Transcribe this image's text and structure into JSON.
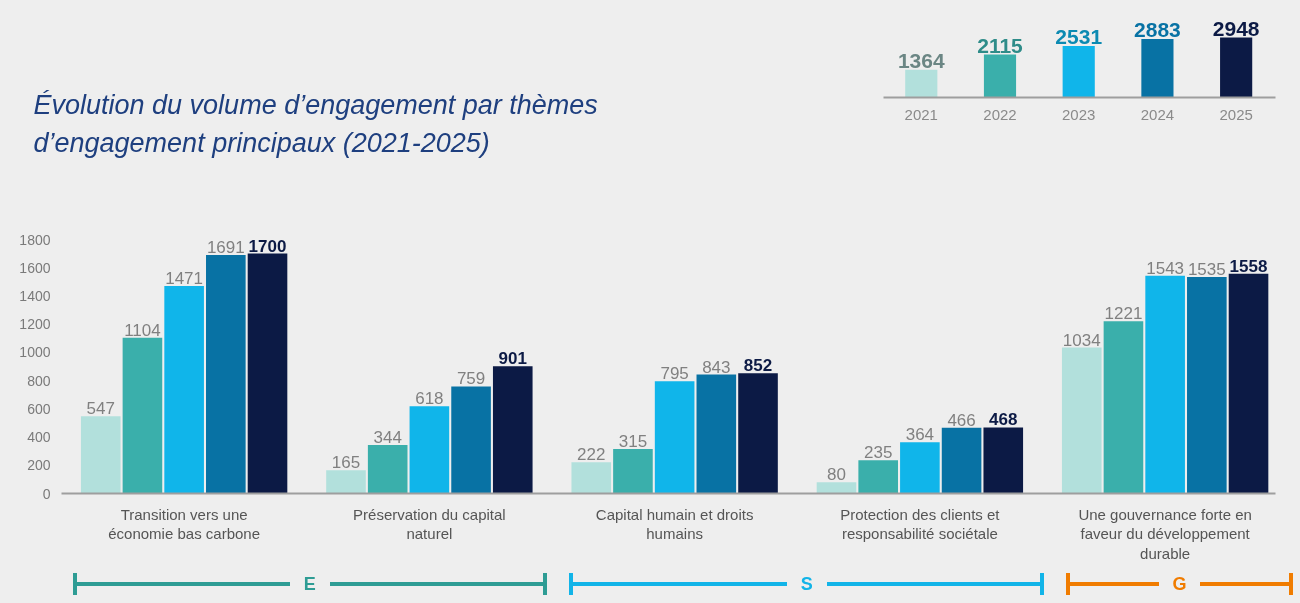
{
  "chart_data": [
    {
      "type": "bar",
      "title": "Évolution du volume d’engagement par thèmes d’engagement principaux (2021-2025)",
      "categories": [
        "Transition vers une économie bas carbone",
        "Préservation du capital naturel",
        "Capital humain et droits humains",
        "Protection des clients et responsabilité sociétale",
        "Une gouvernance forte en faveur du développement durable"
      ],
      "series": [
        {
          "color": "#b2e0dc",
          "values": [
            547,
            165,
            222,
            80,
            1034
          ]
        },
        {
          "color": "#3aafab",
          "values": [
            1104,
            344,
            315,
            235,
            1221
          ]
        },
        {
          "color": "#10b5ea",
          "values": [
            1471,
            618,
            795,
            364,
            1543
          ]
        },
        {
          "color": "#0872a4",
          "values": [
            1691,
            759,
            843,
            466,
            1535
          ]
        },
        {
          "color": "#0c1a45",
          "values": [
            1700,
            901,
            852,
            468,
            1558
          ]
        }
      ],
      "ylim": [
        0,
        1800
      ],
      "yticks": [
        0,
        200,
        400,
        600,
        800,
        1000,
        1200,
        1400,
        1600,
        1800
      ],
      "grid": false,
      "data_labels": true,
      "annotations": [
        "E",
        "S",
        "G"
      ]
    },
    {
      "type": "bar",
      "categories": [
        "2021",
        "2022",
        "2023",
        "2024",
        "2025"
      ],
      "values": [
        1364,
        2115,
        2531,
        2883,
        2948
      ],
      "colors": [
        "#b2e0dc",
        "#3aafab",
        "#10b5ea",
        "#0872a4",
        "#0c1a45"
      ],
      "data_labels": true,
      "tick_labels": "x"
    }
  ]
}
